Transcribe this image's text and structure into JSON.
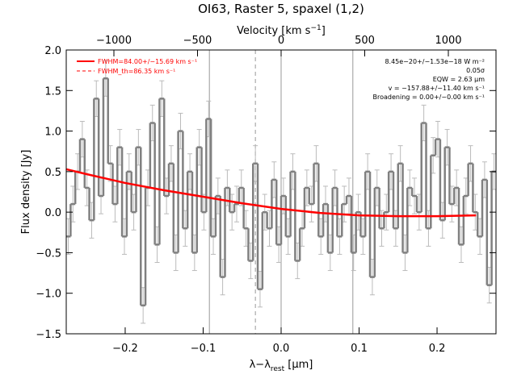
{
  "chart_data": {
    "type": "step",
    "title": "OI63, Raster 5, spaxel (1,2)",
    "ylabel": "Flux density [Jy]",
    "xlabel": {
      "main": "λ−λ",
      "sub": "rest",
      "unit": " [μm]"
    },
    "x2label": {
      "main": "Velocity [km s",
      "sup": "−1",
      "end": "]"
    },
    "xlim": [
      -0.2756,
      0.2756
    ],
    "xticks": [
      {
        "value": -0.2,
        "label": "−0.2"
      },
      {
        "value": -0.1,
        "label": "−0.1"
      },
      {
        "value": 0,
        "label": "0.0"
      },
      {
        "value": 0.1,
        "label": "0.1"
      },
      {
        "value": 0.2,
        "label": "0.2"
      }
    ],
    "x2lim": [
      -1285,
      1285
    ],
    "x2ticks": [
      {
        "value": -1000,
        "label": "−1000"
      },
      {
        "value": -500,
        "label": "−500"
      },
      0,
      500,
      1000
    ],
    "ylim": [
      -1.5,
      2.0
    ],
    "yticks": [
      {
        "value": 2,
        "label": "2.0"
      },
      {
        "value": 1.5,
        "label": "1.5"
      },
      {
        "value": 1,
        "label": "1.0"
      },
      {
        "value": 0.5,
        "label": "0.5"
      },
      {
        "value": 0,
        "label": "0.0"
      },
      {
        "value": -0.5,
        "label": "−0.5"
      },
      {
        "value": -1,
        "label": "−1.0"
      },
      {
        "value": -1.5,
        "label": "−1.5"
      }
    ],
    "vlines": [
      {
        "value": -0.092,
        "style": "solid"
      },
      {
        "value": -0.033,
        "style": "dashed"
      },
      {
        "value": 0,
        "style": "solid"
      },
      {
        "value": 0.092,
        "style": "solid"
      }
    ],
    "series": [
      {
        "color": "#808080",
        "error": 0.22,
        "bin_halfwidth": 0.003,
        "x": [
          -0.273,
          -0.267,
          -0.261,
          -0.255,
          -0.249,
          -0.243,
          -0.237,
          -0.231,
          -0.225,
          -0.219,
          -0.213,
          -0.207,
          -0.201,
          -0.195,
          -0.189,
          -0.183,
          -0.177,
          -0.171,
          -0.165,
          -0.159,
          -0.153,
          -0.147,
          -0.141,
          -0.135,
          -0.129,
          -0.123,
          -0.117,
          -0.111,
          -0.105,
          -0.099,
          -0.093,
          -0.087,
          -0.081,
          -0.075,
          -0.069,
          -0.063,
          -0.057,
          -0.051,
          -0.045,
          -0.039,
          -0.033,
          -0.027,
          -0.021,
          -0.015,
          -0.009,
          -0.003,
          0.003,
          0.009,
          0.015,
          0.021,
          0.027,
          0.033,
          0.039,
          0.045,
          0.051,
          0.057,
          0.063,
          0.069,
          0.075,
          0.081,
          0.087,
          0.093,
          0.099,
          0.105,
          0.111,
          0.117,
          0.123,
          0.129,
          0.135,
          0.141,
          0.147,
          0.153,
          0.159,
          0.165,
          0.171,
          0.177,
          0.183,
          0.189,
          0.195,
          0.201,
          0.207,
          0.213,
          0.219,
          0.225,
          0.231,
          0.237,
          0.243,
          0.249,
          0.255,
          0.261,
          0.267,
          0.273
        ],
        "values": [
          -0.3,
          0.1,
          0.5,
          0.9,
          0.3,
          -0.1,
          1.4,
          0.2,
          1.65,
          0.6,
          0.1,
          0.8,
          -0.3,
          0.5,
          0.0,
          0.8,
          -1.15,
          0.3,
          1.1,
          -0.4,
          1.4,
          0.2,
          0.6,
          -0.5,
          1.0,
          -0.2,
          0.5,
          -0.5,
          0.8,
          0.0,
          1.15,
          -0.3,
          0.2,
          -0.8,
          0.3,
          0.0,
          0.1,
          0.3,
          -0.2,
          -0.6,
          0.6,
          -0.95,
          0.0,
          -0.2,
          0.4,
          -0.4,
          0.2,
          -0.3,
          0.5,
          -0.6,
          -0.2,
          0.3,
          0.1,
          0.6,
          -0.3,
          0.1,
          -0.5,
          0.3,
          -0.3,
          0.1,
          0.2,
          -0.5,
          0.0,
          -0.3,
          0.5,
          -0.8,
          0.3,
          -0.2,
          0.0,
          0.5,
          -0.2,
          0.6,
          -0.5,
          0.3,
          0.2,
          0.0,
          1.1,
          -0.2,
          0.7,
          0.9,
          -0.1,
          0.8,
          0.1,
          0.3,
          -0.4,
          0.2,
          0.6,
          0.0,
          -0.3,
          0.4,
          -0.9,
          0.5
        ]
      },
      {
        "color": "#ff0000",
        "x": [
          -0.276,
          -0.25,
          -0.2,
          -0.15,
          -0.1,
          -0.05,
          0,
          0.05,
          0.1,
          0.15,
          0.2,
          0.25
        ],
        "values": [
          0.53,
          0.47,
          0.36,
          0.27,
          0.19,
          0.11,
          0.04,
          -0.01,
          -0.04,
          -0.05,
          -0.05,
          -0.04
        ]
      }
    ],
    "legend": [
      {
        "text": "FWHM=84.00+/−15.69 km s⁻¹",
        "style": "solid"
      },
      {
        "text": "FWHM_th=86.35 km s⁻¹",
        "style": "dashed"
      }
    ],
    "annotations": [
      "8.45e−20+/−1.53e−18 W m⁻²",
      "0.05σ",
      "EQW = 2.63 μm",
      "v = −157.88+/−11.40 km s⁻¹",
      "Broadening = 0.00+/−0.00 km s⁻¹"
    ]
  }
}
